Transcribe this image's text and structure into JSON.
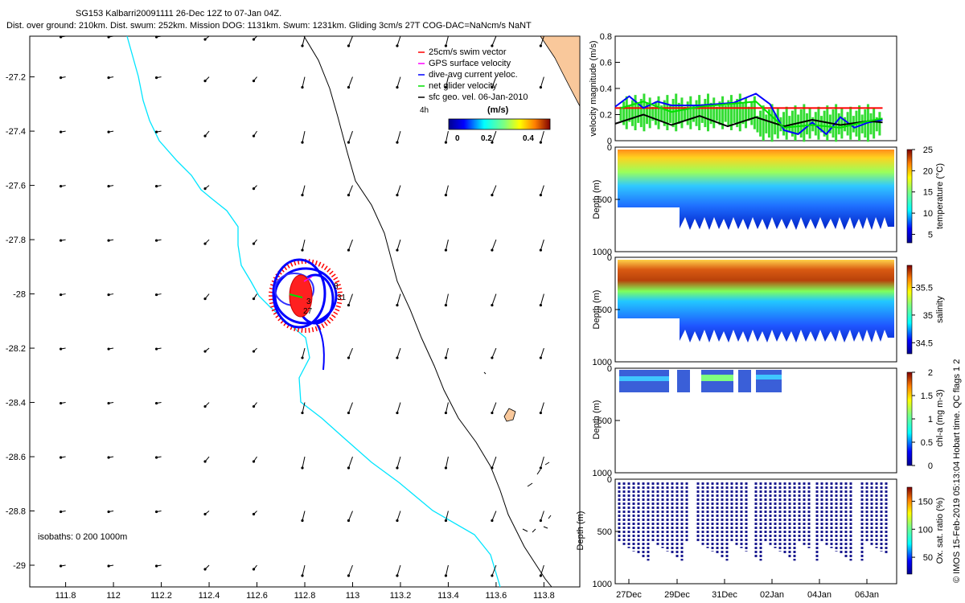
{
  "colors": {
    "coast": "#00e5ff",
    "isobath": "#000000",
    "land": "#f9c89b",
    "swim": "#ff0000",
    "gps": "#ff00ff",
    "dac": "#0000ff",
    "net": "#00e000",
    "geo": "#000000"
  },
  "map": {
    "title_line1": "SG153 Kalbarri20091111 26-Dec 12Z to 07-Jan 04Z.",
    "title_line2": "Dist. over ground: 210km. Dist. swum: 252km. Mission DOG: 1131km. Swum: 1231km. Gliding 3cm/s 27T COG-DAC=NaNcm/s NaNT",
    "xlim": [
      111.65,
      113.95
    ],
    "ylim": [
      -29.08,
      -27.05
    ],
    "xticks": [
      "111.8",
      "112",
      "112.2",
      "112.4",
      "112.6",
      "112.8",
      "113",
      "113.2",
      "113.4",
      "113.6",
      "113.8"
    ],
    "yticks": [
      "-27.2",
      "-27.4",
      "-27.6",
      "-27.8",
      "-28",
      "-28.2",
      "-28.4",
      "-28.6",
      "-28.8",
      "-29"
    ],
    "legend": [
      {
        "label": "25cm/s swim vector",
        "color": "#ff0000"
      },
      {
        "label": "GPS surface velocity",
        "color": "#ff00ff"
      },
      {
        "label": "dive-avg current veloc.",
        "color": "#0000ff"
      },
      {
        "label": "net glider velocity",
        "color": "#00e000"
      },
      {
        "label": "sfc geo. vel. 06-Jan-2010",
        "color": "#000000"
      }
    ],
    "duration_label": "4h",
    "colorbar_title": "(m/s)",
    "colorbar_ticks": [
      "0",
      "0.2",
      "0.4"
    ],
    "track_labels": [
      "8",
      "3",
      "27",
      "31"
    ],
    "isobath_label": "isobaths: 0    200  1000m"
  },
  "chart_data": [
    {
      "type": "line",
      "xlabel": "",
      "ylabel": "velocity magnitude (m/s)",
      "ylim": [
        0,
        0.8
      ],
      "yticks": [
        "0",
        "0.2",
        "0.4",
        "0.6",
        "0.8"
      ],
      "series": [
        {
          "name": "25cm/s swim vector",
          "color": "#ff0000",
          "x": [
            0,
            0.95
          ],
          "values": [
            0.25,
            0.25
          ]
        },
        {
          "name": "dive-avg current veloc.",
          "color": "#0000ff",
          "x": [
            0,
            0.05,
            0.1,
            0.15,
            0.2,
            0.3,
            0.42,
            0.5,
            0.55,
            0.6,
            0.65,
            0.7,
            0.75,
            0.8,
            0.85,
            0.9,
            0.95
          ],
          "values": [
            0.26,
            0.34,
            0.25,
            0.3,
            0.27,
            0.27,
            0.29,
            0.36,
            0.28,
            0.08,
            0.05,
            0.14,
            0.05,
            0.18,
            0.1,
            0.14,
            0.16
          ]
        },
        {
          "name": "sfc geo. vel.",
          "color": "#000000",
          "x": [
            0,
            0.1,
            0.2,
            0.3,
            0.4,
            0.5,
            0.6,
            0.7,
            0.8,
            0.9,
            0.95
          ],
          "values": [
            0.13,
            0.2,
            0.12,
            0.19,
            0.11,
            0.18,
            0.11,
            0.16,
            0.12,
            0.15,
            0.14
          ]
        },
        {
          "name": "net glider velocity",
          "color": "#00e000",
          "x": [
            0.02,
            0.1,
            0.2,
            0.3,
            0.4,
            0.5,
            0.6,
            0.7,
            0.8,
            0.9,
            0.95
          ],
          "values": [
            0.25,
            0.3,
            0.22,
            0.26,
            0.28,
            0.3,
            0.1,
            0.12,
            0.1,
            0.15,
            0.17
          ]
        }
      ]
    },
    {
      "type": "heatmap",
      "ylabel": "Depth (m)",
      "ylim": [
        0,
        1000
      ],
      "yticks": [
        "0",
        "500",
        "1000"
      ],
      "colorbar_label": "temperature (°C)",
      "colorbar_ticks": [
        "5",
        "10",
        "15",
        "20",
        "25"
      ],
      "crange": [
        3,
        25
      ]
    },
    {
      "type": "heatmap",
      "ylabel": "Depth (m)",
      "ylim": [
        0,
        1000
      ],
      "yticks": [
        "0",
        "500",
        "1000"
      ],
      "colorbar_label": "salinity",
      "colorbar_ticks": [
        "34.5",
        "35",
        "35.5"
      ],
      "crange": [
        34.3,
        35.9
      ]
    },
    {
      "type": "heatmap",
      "ylabel": "Depth (m)",
      "ylim": [
        0,
        1000
      ],
      "yticks": [
        "0",
        "500",
        "1000"
      ],
      "colorbar_label": "chl-a (mg m-3)",
      "colorbar_ticks": [
        "0",
        "0.5",
        "1",
        "1.5",
        "2"
      ],
      "crange": [
        0,
        2
      ]
    },
    {
      "type": "heatmap",
      "ylabel": "Depth (m)",
      "ylim": [
        0,
        1000
      ],
      "yticks": [
        "0",
        "500",
        "1000"
      ],
      "colorbar_label": "Ox. sat. ratio (%)",
      "colorbar_ticks": [
        "50",
        "100",
        "150"
      ],
      "crange": [
        20,
        175
      ]
    }
  ],
  "time_axis": {
    "ticks": [
      "27Dec",
      "29Dec",
      "31Dec",
      "02Jan",
      "04Jan",
      "06Jan"
    ]
  },
  "footer": "© IMOS 15-Feb-2019 05:13:04 Hobart time. QC flags 1  2"
}
